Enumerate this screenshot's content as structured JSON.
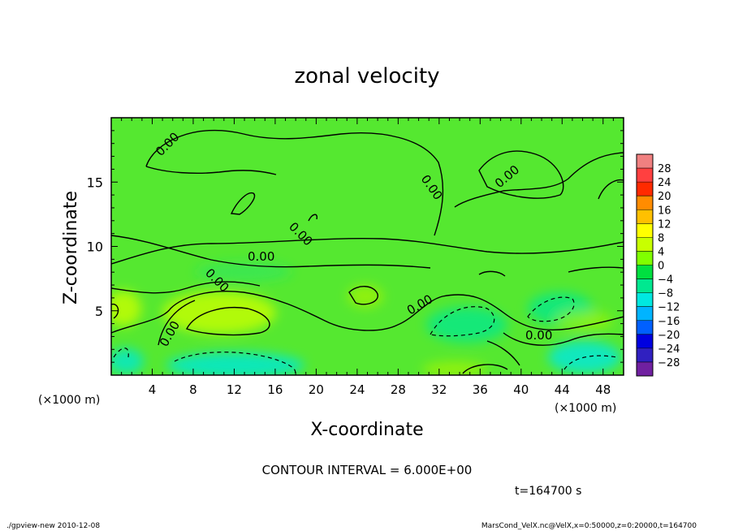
{
  "chart_data": {
    "type": "heatmap",
    "title": "zonal velocity",
    "xlabel": "X-coordinate",
    "ylabel": "Z-coordinate",
    "x_unit": "(×1000 m)",
    "y_unit": "(×1000 m)",
    "xlim": [
      0,
      50
    ],
    "ylim": [
      0,
      20
    ],
    "x_ticks": [
      "4",
      "8",
      "12",
      "16",
      "20",
      "24",
      "28",
      "32",
      "36",
      "40",
      "44",
      "48"
    ],
    "y_ticks": [
      "5",
      "10",
      "15"
    ],
    "contour_interval_text": "CONTOUR INTERVAL = 6.000E+00",
    "contour_label": "0.00",
    "time_text": "t=164700 s",
    "colorbar": {
      "levels": [
        "28",
        "24",
        "20",
        "16",
        "12",
        "8",
        "4",
        "0",
        "−4",
        "−8",
        "−12",
        "−16",
        "−20",
        "−24",
        "−28"
      ],
      "colors": [
        "#f08080",
        "#ff4040",
        "#ff2a00",
        "#ff8c00",
        "#ffc000",
        "#ffff00",
        "#c8ff00",
        "#80ff00",
        "#00e040",
        "#00e890",
        "#00e8e0",
        "#00b4ff",
        "#0060ff",
        "#0000e0",
        "#3020c0",
        "#7020a0"
      ]
    },
    "background_color": "#55e830"
  },
  "footer": {
    "left": "./gpview-new   2010-12-08",
    "right": "MarsCond_VelX.nc@VelX,x=0:50000,z=0:20000,t=164700"
  }
}
